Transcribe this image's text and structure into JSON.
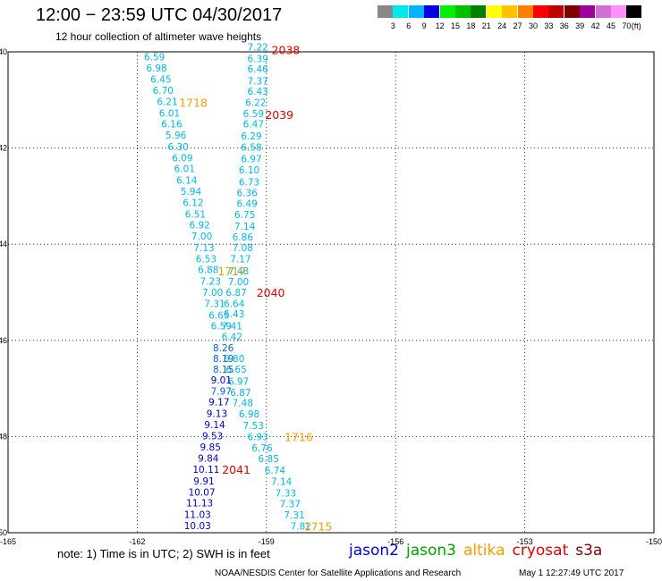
{
  "header": {
    "title": "12:00 − 23:59 UTC 04/30/2017",
    "subtitle": "12 hour collection of altimeter wave heights"
  },
  "colorbar": {
    "colors": [
      "#888888",
      "#00e8e8",
      "#00b4ff",
      "#0000e0",
      "#00f000",
      "#00c000",
      "#008000",
      "#ffff00",
      "#ffc000",
      "#ff8000",
      "#ff0000",
      "#c00000",
      "#800000",
      "#a000a0",
      "#d070d0",
      "#ff90ff",
      "#000000"
    ],
    "labels": [
      "3",
      "6",
      "9",
      "12",
      "15",
      "18",
      "21",
      "24",
      "27",
      "30",
      "33",
      "36",
      "39",
      "42",
      "45",
      "70"
    ],
    "unit": "(ft)"
  },
  "axes": {
    "lon_ticks": [
      "-165",
      "-162",
      "-159",
      "-156",
      "-153",
      "-150"
    ],
    "lat_ticks": [
      "-40",
      "-42",
      "-44",
      "-46",
      "-48",
      "-50"
    ]
  },
  "wave_heights": [
    {
      "v": "7.22",
      "lon": -159.2,
      "lat": -39.9,
      "c": "cyan"
    },
    {
      "v": "6.39",
      "lon": -159.2,
      "lat": -40.14,
      "c": "cyan"
    },
    {
      "v": "6.46",
      "lon": -159.2,
      "lat": -40.35,
      "c": "cyan"
    },
    {
      "v": "7.37",
      "lon": -159.2,
      "lat": -40.6,
      "c": "cyan"
    },
    {
      "v": "6.43",
      "lon": -159.2,
      "lat": -40.82,
      "c": "cyan"
    },
    {
      "v": "6.22",
      "lon": -159.25,
      "lat": -41.05,
      "c": "cyan"
    },
    {
      "v": "6.59",
      "lon": -159.3,
      "lat": -41.28,
      "c": "cyan"
    },
    {
      "v": "6.47",
      "lon": -159.3,
      "lat": -41.5,
      "c": "cyan"
    },
    {
      "v": "6.29",
      "lon": -159.35,
      "lat": -41.75,
      "c": "cyan"
    },
    {
      "v": "6.58",
      "lon": -159.35,
      "lat": -41.98,
      "c": "cyan"
    },
    {
      "v": "6.97",
      "lon": -159.35,
      "lat": -42.22,
      "c": "cyan"
    },
    {
      "v": "6.10",
      "lon": -159.4,
      "lat": -42.45,
      "c": "cyan"
    },
    {
      "v": "6.73",
      "lon": -159.4,
      "lat": -42.7,
      "c": "cyan"
    },
    {
      "v": "6.36",
      "lon": -159.45,
      "lat": -42.93,
      "c": "cyan"
    },
    {
      "v": "6.49",
      "lon": -159.45,
      "lat": -43.15,
      "c": "cyan"
    },
    {
      "v": "6.75",
      "lon": -159.5,
      "lat": -43.38,
      "c": "cyan"
    },
    {
      "v": "7.14",
      "lon": -159.5,
      "lat": -43.62,
      "c": "cyan"
    },
    {
      "v": "6.86",
      "lon": -159.55,
      "lat": -43.85,
      "c": "cyan"
    },
    {
      "v": "7.08",
      "lon": -159.55,
      "lat": -44.07,
      "c": "cyan"
    },
    {
      "v": "7.17",
      "lon": -159.6,
      "lat": -44.3,
      "c": "cyan"
    },
    {
      "v": "7.48",
      "lon": -159.65,
      "lat": -44.55,
      "c": "cyan"
    },
    {
      "v": "7.00",
      "lon": -159.65,
      "lat": -44.78,
      "c": "cyan"
    },
    {
      "v": "6.87",
      "lon": -159.7,
      "lat": -45.0,
      "c": "cyan"
    },
    {
      "v": "6.64",
      "lon": -159.75,
      "lat": -45.23,
      "c": "cyan"
    },
    {
      "v": "6.43",
      "lon": -159.75,
      "lat": -45.45,
      "c": "cyan"
    },
    {
      "v": "7.41",
      "lon": -159.8,
      "lat": -45.7,
      "c": "cyan"
    },
    {
      "v": "6.42",
      "lon": -159.8,
      "lat": -45.92,
      "c": "cyan"
    },
    {
      "v": "6.80",
      "lon": -159.75,
      "lat": -46.38,
      "c": "cyan"
    },
    {
      "v": "6.65",
      "lon": -159.7,
      "lat": -46.6,
      "c": "cyan"
    },
    {
      "v": "6.97",
      "lon": -159.65,
      "lat": -46.85,
      "c": "cyan"
    },
    {
      "v": "6.87",
      "lon": -159.6,
      "lat": -47.08,
      "c": "cyan"
    },
    {
      "v": "7.48",
      "lon": -159.55,
      "lat": -47.3,
      "c": "cyan"
    },
    {
      "v": "6.98",
      "lon": -159.4,
      "lat": -47.53,
      "c": "cyan"
    },
    {
      "v": "7.53",
      "lon": -159.3,
      "lat": -47.77,
      "c": "cyan"
    },
    {
      "v": "6.93",
      "lon": -159.2,
      "lat": -48.0,
      "c": "cyan"
    },
    {
      "v": "6.76",
      "lon": -159.1,
      "lat": -48.23,
      "c": "cyan"
    },
    {
      "v": "6.85",
      "lon": -158.95,
      "lat": -48.46,
      "c": "cyan"
    },
    {
      "v": "6.74",
      "lon": -158.8,
      "lat": -48.7,
      "c": "cyan"
    },
    {
      "v": "7.14",
      "lon": -158.65,
      "lat": -48.93,
      "c": "cyan"
    },
    {
      "v": "7.33",
      "lon": -158.55,
      "lat": -49.17,
      "c": "cyan"
    },
    {
      "v": "7.37",
      "lon": -158.45,
      "lat": -49.4,
      "c": "cyan"
    },
    {
      "v": "7.31",
      "lon": -158.35,
      "lat": -49.63,
      "c": "cyan"
    },
    {
      "v": "7.82",
      "lon": -158.2,
      "lat": -49.86,
      "c": "cyan"
    },
    {
      "v": "6.59",
      "lon": -161.6,
      "lat": -40.1,
      "c": "cyan"
    },
    {
      "v": "6.98",
      "lon": -161.55,
      "lat": -40.33,
      "c": "cyan"
    },
    {
      "v": "6.45",
      "lon": -161.45,
      "lat": -40.57,
      "c": "cyan"
    },
    {
      "v": "6.70",
      "lon": -161.4,
      "lat": -40.8,
      "c": "cyan"
    },
    {
      "v": "6.21",
      "lon": -161.3,
      "lat": -41.03,
      "c": "cyan"
    },
    {
      "v": "6.01",
      "lon": -161.25,
      "lat": -41.27,
      "c": "cyan"
    },
    {
      "v": "6.16",
      "lon": -161.2,
      "lat": -41.5,
      "c": "cyan"
    },
    {
      "v": "5.96",
      "lon": -161.1,
      "lat": -41.73,
      "c": "cyan"
    },
    {
      "v": "6.30",
      "lon": -161.05,
      "lat": -41.97,
      "c": "cyan"
    },
    {
      "v": "6.09",
      "lon": -160.95,
      "lat": -42.2,
      "c": "cyan"
    },
    {
      "v": "6.01",
      "lon": -160.9,
      "lat": -42.43,
      "c": "cyan"
    },
    {
      "v": "6.14",
      "lon": -160.85,
      "lat": -42.67,
      "c": "cyan"
    },
    {
      "v": "5.94",
      "lon": -160.75,
      "lat": -42.9,
      "c": "cyan"
    },
    {
      "v": "6.12",
      "lon": -160.7,
      "lat": -43.13,
      "c": "cyan"
    },
    {
      "v": "6.51",
      "lon": -160.65,
      "lat": -43.37,
      "c": "cyan"
    },
    {
      "v": "6.92",
      "lon": -160.55,
      "lat": -43.6,
      "c": "cyan"
    },
    {
      "v": "7.00",
      "lon": -160.5,
      "lat": -43.83,
      "c": "cyan"
    },
    {
      "v": "7.13",
      "lon": -160.45,
      "lat": -44.07,
      "c": "cyan"
    },
    {
      "v": "6.53",
      "lon": -160.4,
      "lat": -44.3,
      "c": "cyan"
    },
    {
      "v": "6.88",
      "lon": -160.35,
      "lat": -44.53,
      "c": "cyan"
    },
    {
      "v": "7.23",
      "lon": -160.3,
      "lat": -44.77,
      "c": "cyan"
    },
    {
      "v": "7.00",
      "lon": -160.25,
      "lat": -45.0,
      "c": "cyan"
    },
    {
      "v": "7.31",
      "lon": -160.2,
      "lat": -45.23,
      "c": "cyan"
    },
    {
      "v": "6.65",
      "lon": -160.1,
      "lat": -45.47,
      "c": "cyan"
    },
    {
      "v": "6.59",
      "lon": -160.05,
      "lat": -45.7,
      "c": "cyan"
    },
    {
      "v": "8.26",
      "lon": -160.0,
      "lat": -46.15,
      "c": "blue"
    },
    {
      "v": "8.19",
      "lon": -160.0,
      "lat": -46.38,
      "c": "blue"
    },
    {
      "v": "8.15",
      "lon": -160.0,
      "lat": -46.6,
      "c": "blue"
    },
    {
      "v": "9.01",
      "lon": -160.05,
      "lat": -46.82,
      "c": "navy"
    },
    {
      "v": "7.97",
      "lon": -160.05,
      "lat": -47.05,
      "c": "blue"
    },
    {
      "v": "9.17",
      "lon": -160.1,
      "lat": -47.28,
      "c": "navy"
    },
    {
      "v": "9.13",
      "lon": -160.15,
      "lat": -47.52,
      "c": "navy"
    },
    {
      "v": "9.14",
      "lon": -160.2,
      "lat": -47.75,
      "c": "navy"
    },
    {
      "v": "9.53",
      "lon": -160.25,
      "lat": -47.98,
      "c": "navy"
    },
    {
      "v": "9.85",
      "lon": -160.3,
      "lat": -48.22,
      "c": "navy"
    },
    {
      "v": "9.84",
      "lon": -160.35,
      "lat": -48.45,
      "c": "navy"
    },
    {
      "v": "10.11",
      "lon": -160.4,
      "lat": -48.68,
      "c": "navy"
    },
    {
      "v": "9.91",
      "lon": -160.45,
      "lat": -48.92,
      "c": "navy"
    },
    {
      "v": "10.07",
      "lon": -160.5,
      "lat": -49.15,
      "c": "navy"
    },
    {
      "v": "11.13",
      "lon": -160.55,
      "lat": -49.38,
      "c": "navy"
    },
    {
      "v": "11.03",
      "lon": -160.6,
      "lat": -49.62,
      "c": "navy"
    },
    {
      "v": "10.03",
      "lon": -160.6,
      "lat": -49.85,
      "c": "navy"
    }
  ],
  "time_labels": [
    {
      "t": "2038",
      "lon": -158.55,
      "lat": -39.95,
      "c": "red"
    },
    {
      "t": "1718",
      "lon": -160.7,
      "lat": -41.05,
      "c": "orange"
    },
    {
      "t": "2039",
      "lon": -158.7,
      "lat": -41.3,
      "c": "red"
    },
    {
      "t": "1717",
      "lon": -159.8,
      "lat": -44.55,
      "c": "orange"
    },
    {
      "t": "2040",
      "lon": -158.9,
      "lat": -45.0,
      "c": "red"
    },
    {
      "t": "1716",
      "lon": -158.25,
      "lat": -48.0,
      "c": "orange"
    },
    {
      "t": "2041",
      "lon": -159.7,
      "lat": -48.68,
      "c": "red"
    },
    {
      "t": "1715",
      "lon": -157.8,
      "lat": -49.86,
      "c": "orange"
    }
  ],
  "note": "note:  1) Time is in UTC;  2) SWH is in feet",
  "legend": [
    {
      "label": "jason2",
      "color": "#0000e0"
    },
    {
      "label": "jason3",
      "color": "#00a000"
    },
    {
      "label": "altika",
      "color": "#ff9900"
    },
    {
      "label": "cryosat",
      "color": "#e00000"
    },
    {
      "label": "s3a",
      "color": "#800000"
    }
  ],
  "credit": "NOAA/NESDIS Center for Satellite Applications and Research",
  "timestamp": "May  1 12:27:49 UTC 2017"
}
